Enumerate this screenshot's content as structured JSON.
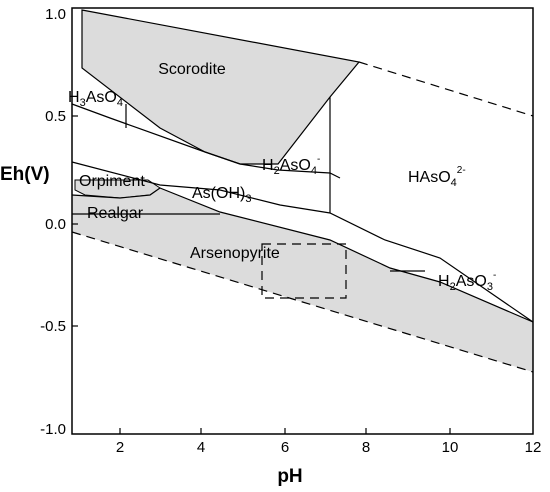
{
  "colors": {
    "stability_field_fill": "#dcdcdc",
    "line": "#000000",
    "background": "#ffffff"
  },
  "axes": {
    "x": {
      "title": "pH",
      "range": [
        1,
        12
      ],
      "ticks": [
        "2",
        "4",
        "6",
        "8",
        "10",
        "12"
      ]
    },
    "y": {
      "title": "Eh(V)",
      "range": [
        -1.1,
        1.0
      ],
      "ticks": [
        "1.0",
        "0.5",
        "0.0",
        "-0.5",
        "-1.0"
      ]
    }
  },
  "fields": {
    "scorodite": "Scorodite",
    "h3aso4": {
      "main": "H",
      "s1": "3",
      "mid": "AsO",
      "s2": "4"
    },
    "h2aso4": {
      "main": "H",
      "s1": "2",
      "mid": "AsO",
      "s2": "4",
      "sup": "-"
    },
    "haso4": {
      "main": "HAsO",
      "s1": "4",
      "sup": "2-"
    },
    "orpiment": "Orpiment",
    "realgar": "Realgar",
    "asoh3": {
      "main": "As(OH)",
      "s1": "3"
    },
    "arsenopyrite": "Arsenopyrite",
    "h2aso3": {
      "main": "H",
      "s1": "2",
      "mid": "AsO",
      "s2": "3",
      "sup": "-"
    }
  }
}
